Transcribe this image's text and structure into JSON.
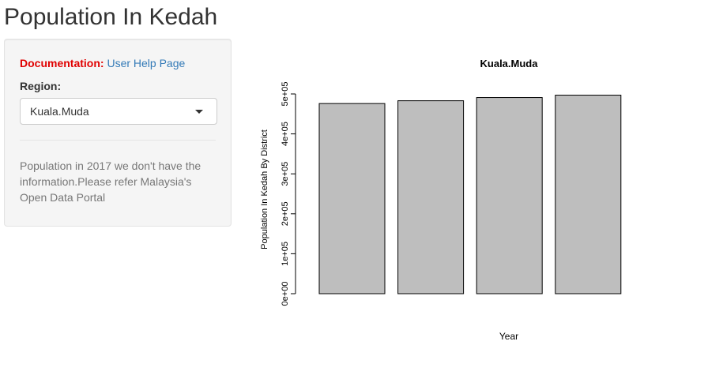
{
  "page": {
    "title": "Population In Kedah"
  },
  "sidebar": {
    "doc_label": "Documentation:",
    "doc_link": "User Help Page",
    "region_label": "Region:",
    "region_value": "Kuala.Muda",
    "info_text": "Population in 2017 we don't have the information.Please refer Malaysia's Open Data Portal"
  },
  "chart_data": {
    "type": "bar",
    "title": "Kuala.Muda",
    "xlabel": "Year",
    "ylabel": "Population In Kedah By District",
    "ylim": [
      0,
      500000
    ],
    "yticks": [
      {
        "value": 0,
        "label": "0e+00"
      },
      {
        "value": 100000,
        "label": "1e+05"
      },
      {
        "value": 200000,
        "label": "2e+05"
      },
      {
        "value": 300000,
        "label": "3e+05"
      },
      {
        "value": 400000,
        "label": "4e+05"
      },
      {
        "value": 500000,
        "label": "5e+05"
      }
    ],
    "values": [
      476000,
      483000,
      491000,
      497000,
      0
    ],
    "bar_color": "#bebebe",
    "grid": false,
    "legend": "none"
  }
}
